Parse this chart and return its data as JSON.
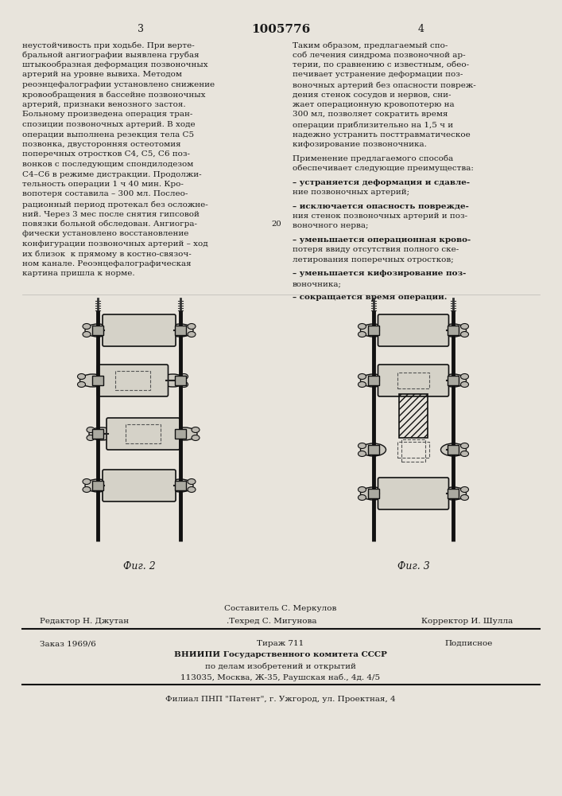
{
  "bg_color": "#e8e4dc",
  "page_number_left": "3",
  "page_number_center": "1005776",
  "page_number_right": "4",
  "left_column_text": [
    "неустойчивость при ходьбе. При верте-",
    "бральной ангиографии выявлена грубая",
    "штыкообразная деформация позвоночных",
    "артерий на уровне вывиха. Методом",
    "реоэнцефалографии установлено снижение",
    "кровообращения в бассейне позвоночных",
    "артерий, признаки венозного застоя.",
    "Больному произведена операция тран-",
    "спозиции позвоночных артерий. В ходе",
    "операции выполнена резекция тела С5",
    "позвонка, двусторонняя остеотомия",
    "поперечных отростков C4, C5, C6 поз-",
    "вонков с последующим спондилодезом",
    "С4–С6 в режиме дистракции. Продолжи-",
    "тельность операции 1 ч 40 мин. Кро-",
    "вопотеря составила – 300 мл. Послео-",
    "рационный период протекал без осложне-",
    "ний. Через 3 мес после снятия гипсовой",
    "повязки больной обследован. Ангиогра-",
    "фически установлено восстановление",
    "конфигурации позвоночных артерий – ход",
    "их близок  к прямому в костно-связоч-",
    "ном канале. Реоэнцефалографическая",
    "картина пришла к норме."
  ],
  "right_column_text": [
    "Таким образом, предлагаемый спо-",
    "соб лечения синдрома позвоночной ар-",
    "терии, по сравнению с известным, обео-",
    "печивает устранение деформации поз-",
    "воночных артерий без опасности повреж-",
    "дения стенок сосудов и нервов, сни-",
    "жает операционную кровопотерю на",
    "300 мл, позволяет сократить время",
    "операции приблизительно на 1,5 ч и",
    "надежно устранить посттравматическое",
    "кифозирование позвоночника.",
    "",
    "Применение предлагаемого способа",
    "обеспечивает следующие преимущества:",
    "",
    "– устраняется деформация и сдавле-",
    "ние позвоночных артерий;",
    "",
    "– исключается опасность поврежде-",
    "ния стенок позвоночных артерий и поз-",
    "воночного нерва;",
    "",
    "– уменьшается операционная крово-",
    "потеря ввиду отсутствия полного ске-",
    "летирования поперечных отростков;",
    "",
    "– уменьшается кифозирование поз-",
    "воночника;",
    "",
    "– сокращается время операции."
  ],
  "fig2_label": "Фиг. 2",
  "fig3_label": "Фиг. 3",
  "footer_line1_left": "Редактор Н. Джутан",
  "footer_line1_center": "Составитель С. Меркулов",
  "footer_line1_center2": ".Техред С. Мигунова",
  "footer_line1_right": "Корректор И. Шулла",
  "footer_line2_left": "Заказ 1969/6",
  "footer_line2_center": "Тираж 711",
  "footer_line2_right": "Подписное",
  "footer_line3": "ВНИИПИ Государственного комитета СССР",
  "footer_line4": "по делам изобретений и открытий",
  "footer_line5": "113035, Москва, Ж-35, Раушская наб., 4д. 4/5",
  "footer_line6": "Филиал ПНП \"Патент\", г. Ужгород, ул. Проектная, 4",
  "line_number_20": "20"
}
